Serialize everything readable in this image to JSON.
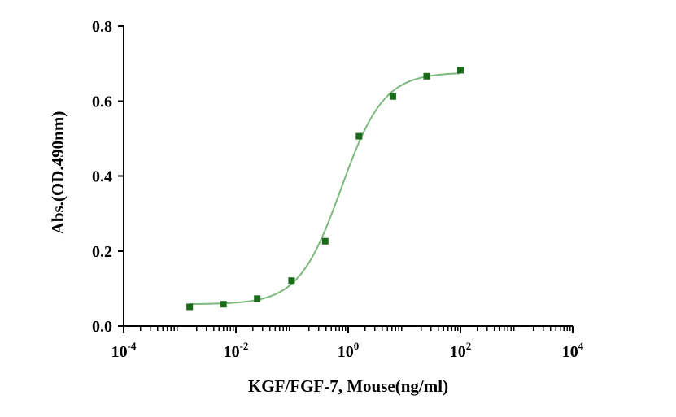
{
  "chart_data": {
    "type": "scatter",
    "title": "",
    "xlabel": "KGF/FGF-7, Mouse(ng/ml)",
    "ylabel": "Abs.(OD.490nm)",
    "x_scale": "log",
    "xlim": [
      0.0001,
      10000
    ],
    "ylim": [
      0,
      0.8
    ],
    "x_ticks": [
      {
        "base": "10",
        "exp": "-4"
      },
      {
        "base": "10",
        "exp": "-2"
      },
      {
        "base": "10",
        "exp": "0"
      },
      {
        "base": "10",
        "exp": "2"
      },
      {
        "base": "10",
        "exp": "4"
      }
    ],
    "y_ticks": [
      "0.0",
      "0.2",
      "0.4",
      "0.6",
      "0.8"
    ],
    "y_tick_values": [
      0,
      0.2,
      0.4,
      0.6,
      0.8
    ],
    "series": [
      {
        "name": "KGF/FGF-7, Mouse",
        "x": [
          0.0015,
          0.006,
          0.024,
          0.098,
          0.39,
          1.56,
          6.25,
          25,
          100
        ],
        "y": [
          0.051,
          0.058,
          0.073,
          0.121,
          0.226,
          0.506,
          0.612,
          0.666,
          0.682
        ]
      }
    ],
    "fit": {
      "model": "4PL",
      "bottom": 0.058,
      "top": 0.676,
      "ec50": 0.75,
      "hill": 1.15,
      "x_range": [
        0.0015,
        100
      ]
    },
    "marker_color": "#1a6b1a",
    "line_color": "#7db87d",
    "grid": false,
    "legend": "none"
  }
}
